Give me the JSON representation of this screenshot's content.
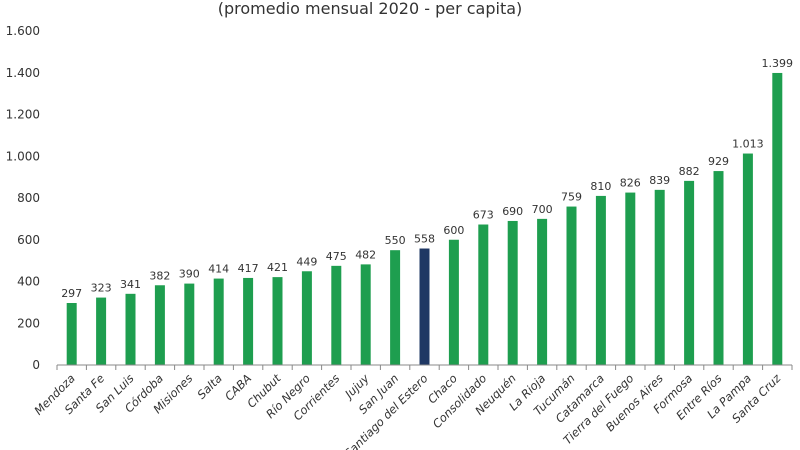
{
  "chart_data": {
    "type": "bar",
    "title": "(promedio mensual 2020 - per capita)",
    "xlabel": "",
    "ylabel": "",
    "ylim": [
      0,
      1600
    ],
    "yticks": [
      0,
      200,
      400,
      600,
      800,
      1000,
      1200,
      1400,
      1600
    ],
    "ytick_labels": [
      "0",
      "200",
      "400",
      "600",
      "800",
      "1.000",
      "1.200",
      "1.400",
      "1.600"
    ],
    "grid": false,
    "categories": [
      "Mendoza",
      "Santa Fe",
      "San Luis",
      "Córdoba",
      "Misiones",
      "Salta",
      "CABA",
      "Chubut",
      "Río Negro",
      "Corrientes",
      "Jujuy",
      "San Juan",
      "Santiago del Estero",
      "Chaco",
      "Consolidado",
      "Neuquén",
      "La Rioja",
      "Tucumán",
      "Catamarca",
      "Tierra del Fuego",
      "Buenos Aires",
      "Formosa",
      "Entre Ríos",
      "La Pampa",
      "Santa Cruz"
    ],
    "values": [
      297,
      323,
      341,
      382,
      390,
      414,
      417,
      421,
      449,
      475,
      482,
      550,
      558,
      600,
      673,
      690,
      700,
      759,
      810,
      826,
      839,
      882,
      929,
      1013,
      1399
    ],
    "value_labels": [
      "297",
      "323",
      "341",
      "382",
      "390",
      "414",
      "417",
      "421",
      "449",
      "475",
      "482",
      "550",
      "558",
      "600",
      "673",
      "690",
      "700",
      "759",
      "810",
      "826",
      "839",
      "882",
      "929",
      "1.013",
      "1.399"
    ],
    "highlight_category": "Santiago del Estero",
    "colors": {
      "bar": "#1e9e4f",
      "highlight": "#1f3864"
    }
  }
}
